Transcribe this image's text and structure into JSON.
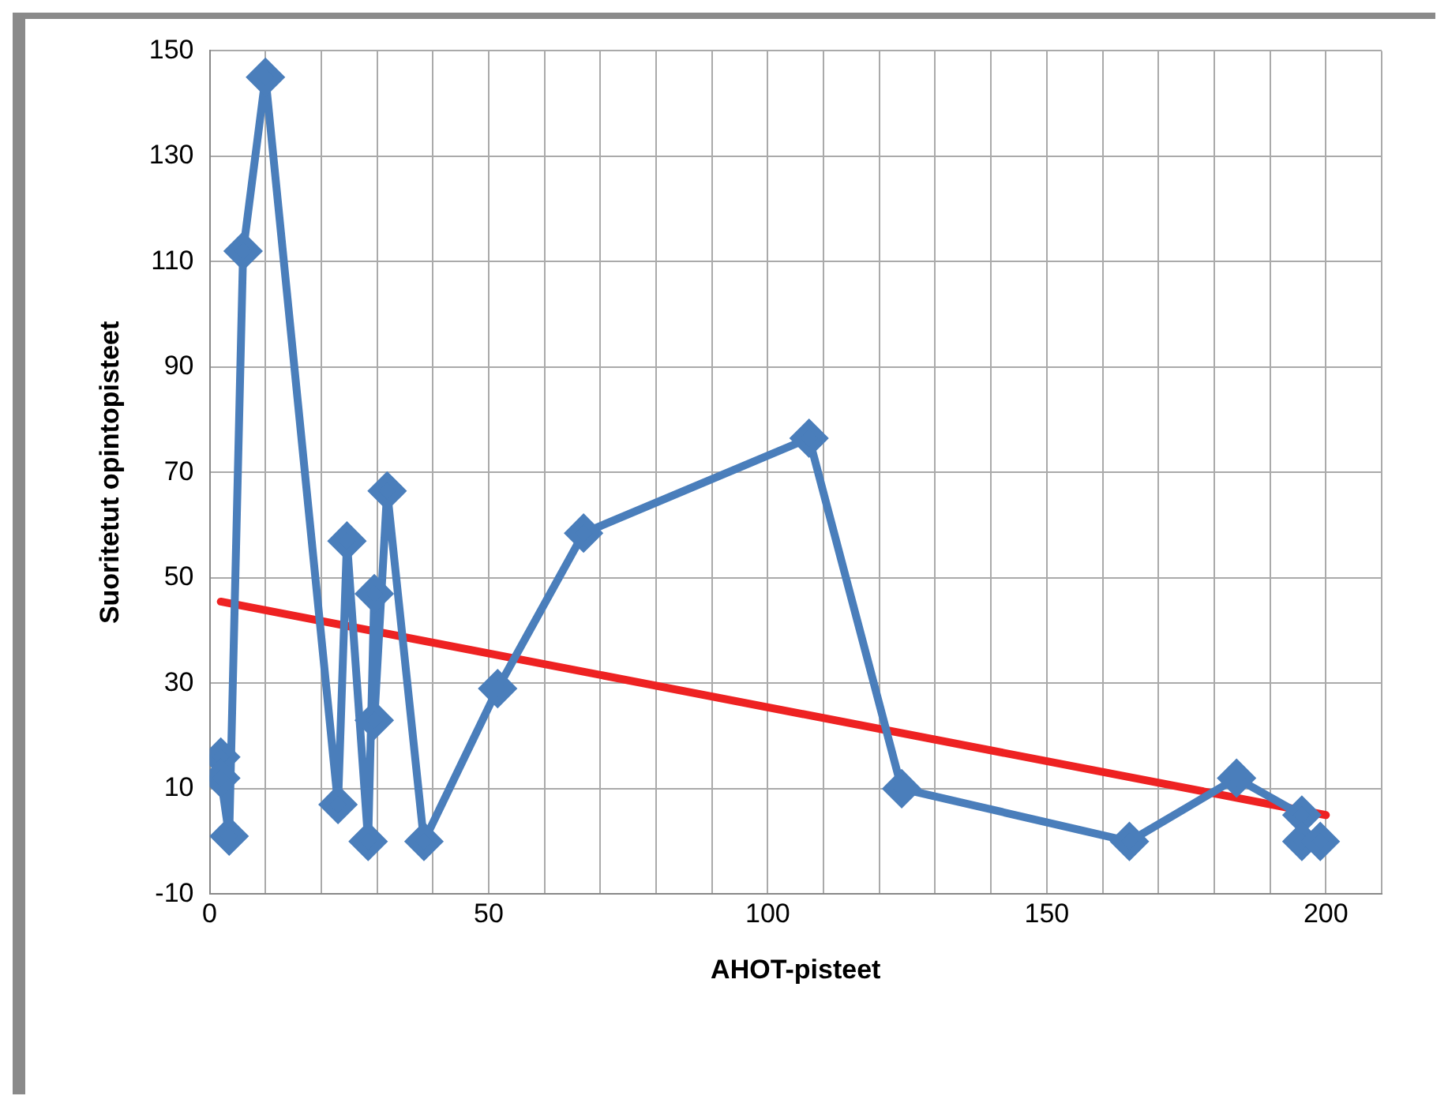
{
  "chart_data": {
    "type": "line",
    "xlabel": "AHOT-pisteet",
    "ylabel": "Suoritetut opintopisteet",
    "xlim": [
      0,
      210
    ],
    "xticks": [
      0,
      {
        "value": 10,
        "label": null
      },
      {
        "value": 20,
        "label": null
      },
      {
        "value": 30,
        "label": null
      },
      {
        "value": 40,
        "label": null
      },
      50,
      {
        "value": 60,
        "label": null
      },
      {
        "value": 70,
        "label": null
      },
      {
        "value": 80,
        "label": null
      },
      {
        "value": 90,
        "label": null
      },
      100,
      {
        "value": 110,
        "label": null
      },
      {
        "value": 120,
        "label": null
      },
      {
        "value": 130,
        "label": null
      },
      {
        "value": 140,
        "label": null
      },
      150,
      {
        "value": 160,
        "label": null
      },
      {
        "value": 170,
        "label": null
      },
      {
        "value": 180,
        "label": null
      },
      {
        "value": 190,
        "label": null
      },
      200,
      {
        "value": 210,
        "label": null
      }
    ],
    "ylim": [
      -10,
      150
    ],
    "yticks": [
      -10,
      10,
      30,
      50,
      70,
      90,
      110,
      130,
      150
    ],
    "grid": true,
    "marker": "diamond",
    "line_style": "solid",
    "series": [
      {
        "type": "line",
        "color": "#4a7ebb",
        "x": [
          2,
          2,
          3.5,
          6,
          10,
          23,
          24.6,
          28.4,
          29.5,
          29.5,
          31.8,
          38.4,
          51.6,
          67,
          107.4,
          124,
          164.8,
          184,
          195.7,
          195.7,
          199
        ],
        "values": [
          16,
          12,
          1,
          112,
          145,
          7,
          57,
          0,
          47,
          23,
          66.5,
          0,
          29,
          58.5,
          76.5,
          10,
          0,
          12,
          5,
          0,
          0
        ]
      },
      {
        "type": "line",
        "color": "#ee2222",
        "marker": "none",
        "x": [
          2,
          200
        ],
        "values": [
          45.5,
          5
        ]
      }
    ]
  }
}
